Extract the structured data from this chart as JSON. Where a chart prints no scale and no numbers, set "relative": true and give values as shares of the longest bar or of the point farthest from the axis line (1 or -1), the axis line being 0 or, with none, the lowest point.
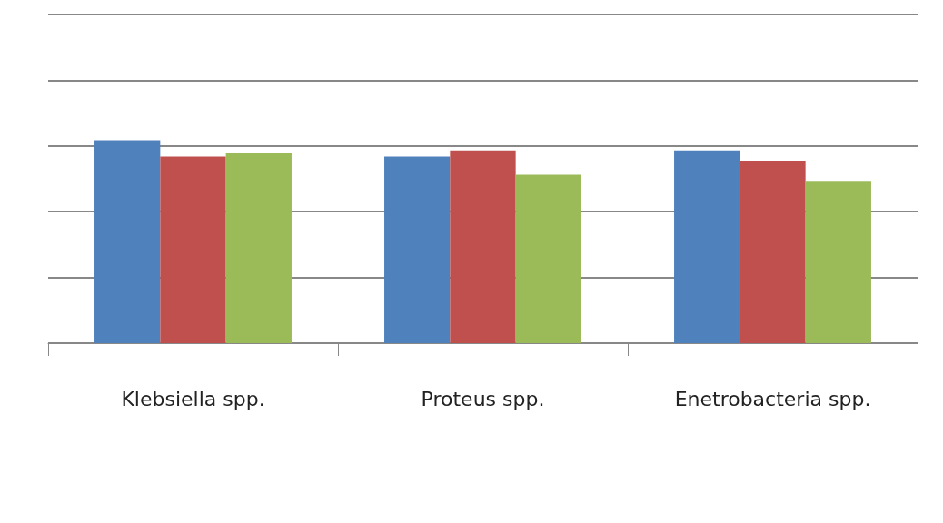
{
  "chart_data": {
    "type": "bar",
    "relative": true,
    "categories": [
      "Klebsiella spp.",
      "Proteus spp.",
      "Enetrobacteria spp."
    ],
    "series": [
      {
        "color": "#4f81bd",
        "values": [
          1,
          0.92,
          0.95
        ]
      },
      {
        "color": "#c0504d",
        "values": [
          0.92,
          0.95,
          0.9
        ]
      },
      {
        "color": "#9bbb59",
        "values": [
          0.94,
          0.83,
          0.8
        ]
      }
    ],
    "grid": "y"
  }
}
